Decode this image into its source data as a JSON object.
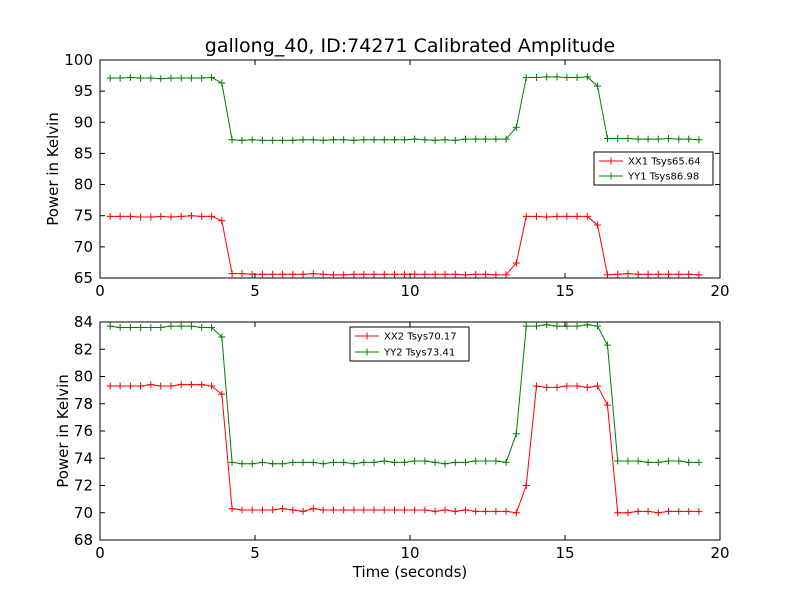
{
  "chart_data": [
    {
      "type": "line",
      "title": "gallong_40, ID:74271 Calibrated Amplitude",
      "xlabel": "",
      "ylabel": "Power in Kelvin",
      "xlim": [
        0,
        20
      ],
      "ylim": [
        65,
        100
      ],
      "xticks": [
        0,
        5,
        10,
        15,
        20
      ],
      "xtick_labels": [
        "0",
        "5",
        "10",
        "15",
        "20"
      ],
      "yticks": [
        65,
        70,
        75,
        80,
        85,
        90,
        95,
        100
      ],
      "ytick_labels": [
        "65",
        "70",
        "75",
        "80",
        "85",
        "90",
        "95",
        "100"
      ],
      "grid": false,
      "legend_position": "center-right",
      "marker": "+",
      "x": [
        0.33,
        0.65,
        0.98,
        1.31,
        1.64,
        1.96,
        2.29,
        2.62,
        2.95,
        3.28,
        3.6,
        3.93,
        4.26,
        4.58,
        4.91,
        5.24,
        5.57,
        5.89,
        6.22,
        6.55,
        6.88,
        7.2,
        7.53,
        7.86,
        8.19,
        8.51,
        8.84,
        9.17,
        9.5,
        9.82,
        10.15,
        10.48,
        10.81,
        11.13,
        11.46,
        11.79,
        12.12,
        12.44,
        12.77,
        13.1,
        13.43,
        13.75,
        14.08,
        14.41,
        14.74,
        15.06,
        15.39,
        15.72,
        16.05,
        16.37,
        16.7,
        17.03,
        17.36,
        17.68,
        18.01,
        18.34,
        18.67,
        18.99,
        19.32
      ],
      "series": [
        {
          "name": "XX1 Tsys65.64",
          "color": "#ff0000",
          "values": [
            74.9,
            74.9,
            74.9,
            74.8,
            74.8,
            74.9,
            74.8,
            74.9,
            75.0,
            74.9,
            74.9,
            74.2,
            65.7,
            65.7,
            65.6,
            65.6,
            65.6,
            65.6,
            65.6,
            65.6,
            65.7,
            65.6,
            65.5,
            65.5,
            65.6,
            65.6,
            65.6,
            65.6,
            65.6,
            65.6,
            65.6,
            65.6,
            65.6,
            65.6,
            65.6,
            65.5,
            65.6,
            65.6,
            65.5,
            65.5,
            67.4,
            74.9,
            74.9,
            74.8,
            74.9,
            74.9,
            74.9,
            74.9,
            73.5,
            65.5,
            65.6,
            65.7,
            65.6,
            65.6,
            65.6,
            65.6,
            65.6,
            65.6,
            65.5
          ]
        },
        {
          "name": "YY1 Tsys86.98",
          "color": "#008000",
          "values": [
            97.1,
            97.1,
            97.2,
            97.1,
            97.1,
            97.0,
            97.1,
            97.1,
            97.1,
            97.1,
            97.2,
            96.3,
            87.2,
            87.1,
            87.2,
            87.1,
            87.1,
            87.1,
            87.1,
            87.2,
            87.2,
            87.1,
            87.2,
            87.2,
            87.1,
            87.2,
            87.2,
            87.2,
            87.2,
            87.2,
            87.3,
            87.2,
            87.1,
            87.2,
            87.1,
            87.3,
            87.3,
            87.3,
            87.3,
            87.3,
            89.2,
            97.2,
            97.2,
            97.3,
            97.3,
            97.2,
            97.2,
            97.3,
            95.8,
            87.4,
            87.4,
            87.4,
            87.3,
            87.3,
            87.3,
            87.4,
            87.3,
            87.3,
            87.2
          ]
        }
      ]
    },
    {
      "type": "line",
      "title": "",
      "xlabel": "Time (seconds)",
      "ylabel": "Power in Kelvin",
      "xlim": [
        0,
        20
      ],
      "ylim": [
        68,
        84
      ],
      "xticks": [
        0,
        5,
        10,
        15,
        20
      ],
      "xtick_labels": [
        "0",
        "5",
        "10",
        "15",
        "20"
      ],
      "yticks": [
        68,
        70,
        72,
        74,
        76,
        78,
        80,
        82,
        84
      ],
      "ytick_labels": [
        "68",
        "70",
        "72",
        "74",
        "76",
        "78",
        "80",
        "82",
        "84"
      ],
      "grid": false,
      "legend_position": "top-center",
      "marker": "+",
      "x": [
        0.33,
        0.65,
        0.98,
        1.31,
        1.64,
        1.96,
        2.29,
        2.62,
        2.95,
        3.28,
        3.6,
        3.93,
        4.26,
        4.58,
        4.91,
        5.24,
        5.57,
        5.89,
        6.22,
        6.55,
        6.88,
        7.2,
        7.53,
        7.86,
        8.19,
        8.51,
        8.84,
        9.17,
        9.5,
        9.82,
        10.15,
        10.48,
        10.81,
        11.13,
        11.46,
        11.79,
        12.12,
        12.44,
        12.77,
        13.1,
        13.43,
        13.75,
        14.08,
        14.41,
        14.74,
        15.06,
        15.39,
        15.72,
        16.05,
        16.37,
        16.7,
        17.03,
        17.36,
        17.68,
        18.01,
        18.34,
        18.67,
        18.99,
        19.32
      ],
      "series": [
        {
          "name": "XX2 Tsys70.17",
          "color": "#ff0000",
          "values": [
            79.3,
            79.3,
            79.3,
            79.3,
            79.4,
            79.3,
            79.3,
            79.4,
            79.4,
            79.4,
            79.3,
            78.7,
            70.3,
            70.2,
            70.2,
            70.2,
            70.2,
            70.3,
            70.2,
            70.1,
            70.3,
            70.2,
            70.2,
            70.2,
            70.2,
            70.2,
            70.2,
            70.2,
            70.2,
            70.2,
            70.2,
            70.2,
            70.1,
            70.2,
            70.1,
            70.2,
            70.1,
            70.1,
            70.1,
            70.1,
            70.0,
            72.0,
            79.3,
            79.2,
            79.2,
            79.3,
            79.3,
            79.2,
            79.3,
            77.9,
            70.0,
            70.0,
            70.1,
            70.1,
            70.0,
            70.1,
            70.1,
            70.1,
            70.1
          ]
        },
        {
          "name": "YY2 Tsys73.41",
          "color": "#008000",
          "values": [
            83.7,
            83.6,
            83.6,
            83.6,
            83.6,
            83.6,
            83.7,
            83.7,
            83.7,
            83.6,
            83.6,
            82.9,
            73.7,
            73.6,
            73.6,
            73.7,
            73.6,
            73.6,
            73.7,
            73.7,
            73.7,
            73.6,
            73.7,
            73.7,
            73.6,
            73.7,
            73.7,
            73.8,
            73.7,
            73.7,
            73.8,
            73.8,
            73.7,
            73.6,
            73.7,
            73.7,
            73.8,
            73.8,
            73.8,
            73.7,
            75.8,
            83.7,
            83.7,
            83.8,
            83.7,
            83.7,
            83.7,
            83.8,
            83.7,
            82.3,
            73.8,
            73.8,
            73.8,
            73.7,
            73.7,
            73.8,
            73.8,
            73.7,
            73.7
          ]
        }
      ]
    }
  ]
}
